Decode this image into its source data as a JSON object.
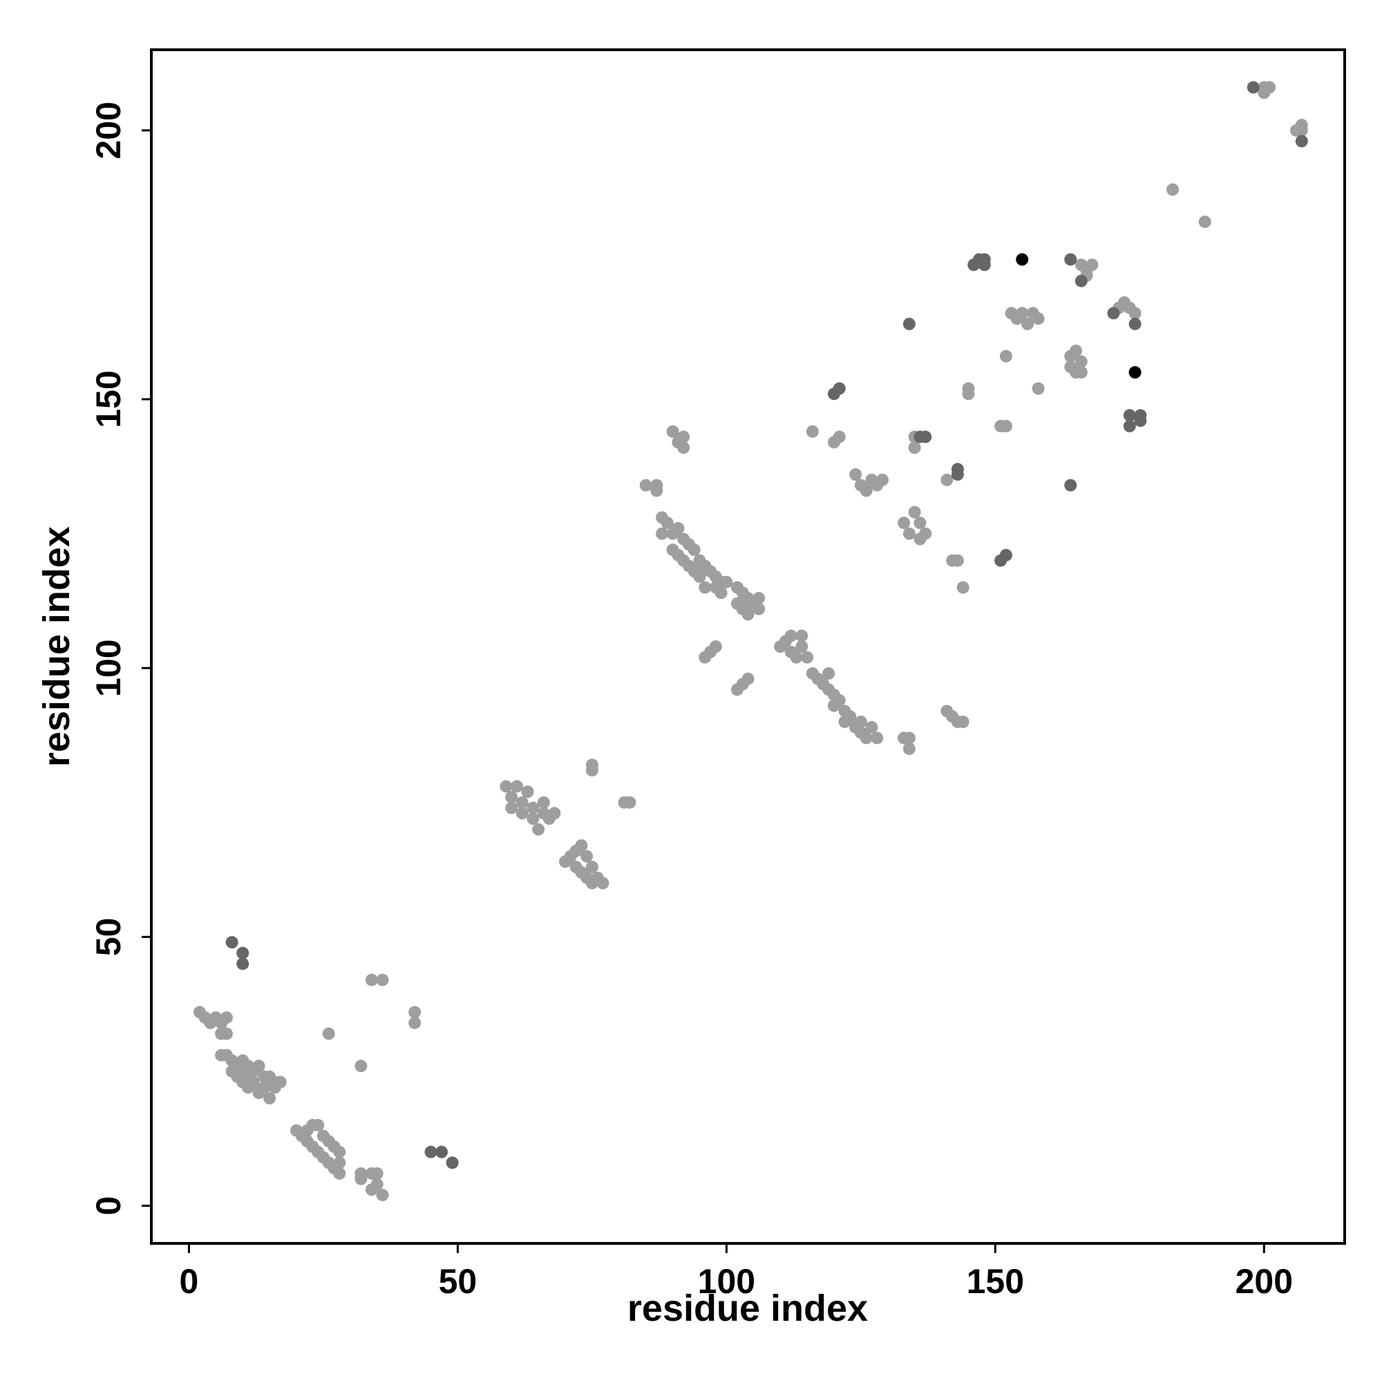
{
  "chart_data": {
    "type": "scatter",
    "xlabel": "residue index",
    "ylabel": "residue index",
    "xlim": [
      -7,
      215
    ],
    "ylim": [
      -7,
      215
    ],
    "xticks": [
      0,
      50,
      100,
      150,
      200
    ],
    "yticks": [
      0,
      50,
      100,
      150,
      200
    ],
    "series": [
      {
        "color": "#9e9e9e",
        "x": [
          2,
          3,
          4,
          5,
          6,
          6,
          7,
          7,
          6,
          7,
          8,
          8,
          9,
          9,
          10,
          10,
          10,
          11,
          11,
          11,
          12,
          12,
          13,
          13,
          14,
          14,
          15,
          15,
          16,
          16,
          17,
          20,
          21,
          22,
          22,
          23,
          23,
          24,
          24,
          25,
          25,
          26,
          26,
          27,
          27,
          28,
          28,
          28,
          32,
          32,
          34,
          34,
          35,
          35,
          36,
          26,
          32,
          34,
          36,
          42,
          42,
          59,
          60,
          60,
          61,
          62,
          62,
          63,
          64,
          64,
          65,
          66,
          66,
          67,
          68,
          70,
          71,
          72,
          72,
          73,
          73,
          74,
          74,
          75,
          75,
          76,
          77,
          75,
          75,
          81,
          82,
          85,
          87,
          87,
          88,
          88,
          89,
          90,
          90,
          91,
          91,
          92,
          92,
          93,
          93,
          94,
          94,
          95,
          95,
          96,
          96,
          97,
          98,
          98,
          99,
          99,
          100,
          102,
          102,
          103,
          103,
          104,
          104,
          105,
          106,
          106,
          90,
          91,
          92,
          92,
          96,
          97,
          98,
          102,
          103,
          104,
          110,
          111,
          112,
          112,
          113,
          114,
          114,
          115,
          116,
          117,
          118,
          119,
          119,
          120,
          120,
          121,
          122,
          122,
          123,
          124,
          125,
          125,
          126,
          127,
          128,
          133,
          134,
          134,
          141,
          142,
          143,
          144,
          116,
          120,
          121,
          124,
          125,
          126,
          127,
          128,
          129,
          133,
          134,
          135,
          136,
          136,
          137,
          135,
          135,
          141,
          142,
          143,
          144,
          145,
          145,
          151,
          152,
          152,
          153,
          154,
          155,
          156,
          157,
          158,
          158,
          164,
          164,
          165,
          165,
          166,
          166,
          166,
          167,
          168,
          167,
          173,
          174,
          175,
          176,
          183,
          189,
          200,
          201,
          200,
          207,
          207,
          206
        ],
        "y": [
          36,
          35,
          34,
          35,
          34,
          32,
          32,
          35,
          28,
          28,
          27,
          25,
          26,
          24,
          27,
          25,
          23,
          26,
          24,
          22,
          25,
          23,
          26,
          21,
          24,
          22,
          20,
          24,
          23,
          22,
          23,
          14,
          13,
          14,
          12,
          15,
          11,
          15,
          10,
          13,
          9,
          12,
          8,
          11,
          7,
          10,
          8,
          6,
          6,
          5,
          6,
          3,
          6,
          4,
          2,
          32,
          26,
          42,
          42,
          36,
          34,
          78,
          76,
          74,
          78,
          75,
          73,
          77,
          74,
          72,
          70,
          75,
          73,
          72,
          73,
          64,
          65,
          63,
          66,
          67,
          62,
          65,
          61,
          63,
          60,
          61,
          60,
          82,
          81,
          75,
          75,
          134,
          134,
          133,
          128,
          125,
          127,
          125,
          122,
          126,
          121,
          124,
          120,
          123,
          119,
          122,
          118,
          120,
          117,
          119,
          115,
          118,
          117,
          115,
          116,
          114,
          116,
          115,
          112,
          114,
          111,
          113,
          110,
          112,
          113,
          111,
          144,
          142,
          141,
          143,
          102,
          103,
          104,
          96,
          97,
          98,
          104,
          105,
          103,
          106,
          102,
          104,
          106,
          102,
          99,
          98,
          97,
          99,
          96,
          95,
          93,
          94,
          92,
          90,
          91,
          89,
          90,
          88,
          87,
          89,
          87,
          87,
          85,
          87,
          92,
          91,
          90,
          90,
          144,
          142,
          143,
          136,
          134,
          133,
          135,
          134,
          135,
          127,
          125,
          129,
          127,
          124,
          125,
          141,
          143,
          135,
          120,
          120,
          115,
          152,
          151,
          145,
          145,
          158,
          166,
          165,
          166,
          164,
          166,
          165,
          152,
          158,
          156,
          159,
          155,
          157,
          155,
          175,
          174,
          175,
          173,
          167,
          168,
          167,
          166,
          189,
          183,
          208,
          208,
          207,
          201,
          200,
          200
        ]
      },
      {
        "color": "#666666",
        "x": [
          8,
          10,
          10,
          45,
          47,
          49,
          120,
          121,
          134,
          136,
          137,
          143,
          143,
          146,
          147,
          148,
          148,
          151,
          152,
          164,
          164,
          166,
          172,
          175,
          175,
          177,
          177,
          176,
          198,
          207
        ],
        "y": [
          49,
          47,
          45,
          10,
          10,
          8,
          151,
          152,
          164,
          143,
          143,
          137,
          136,
          175,
          176,
          176,
          175,
          120,
          121,
          176,
          134,
          172,
          166,
          147,
          145,
          147,
          146,
          164,
          208,
          198
        ]
      },
      {
        "color": "#000000",
        "x": [
          155,
          176
        ],
        "y": [
          176,
          155
        ]
      }
    ]
  }
}
